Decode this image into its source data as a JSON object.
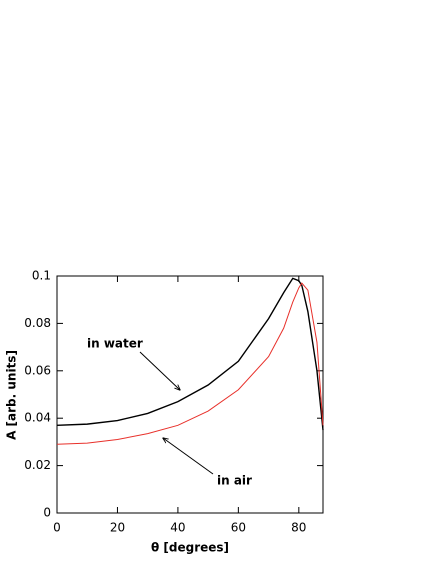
{
  "chart_data": {
    "type": "line",
    "x_label": "θ [degrees]",
    "y_label": "A [arb. units]",
    "x": [
      0,
      10,
      20,
      30,
      40,
      50,
      60,
      70,
      75,
      78,
      80,
      81,
      83,
      86,
      88
    ],
    "series": [
      {
        "name": "in water",
        "color": "#000000",
        "values": [
          0.037,
          0.0375,
          0.039,
          0.042,
          0.047,
          0.054,
          0.064,
          0.082,
          0.093,
          0.099,
          0.098,
          0.096,
          0.085,
          0.06,
          0.035
        ]
      },
      {
        "name": "in air",
        "color": "#e8302a",
        "values": [
          0.029,
          0.0295,
          0.031,
          0.0335,
          0.037,
          0.043,
          0.052,
          0.066,
          0.078,
          0.089,
          0.095,
          0.097,
          0.094,
          0.072,
          0.037
        ]
      }
    ],
    "xlim": [
      0,
      88
    ],
    "xticks": [
      0,
      20,
      40,
      60,
      80
    ],
    "ylim": [
      0,
      0.1
    ],
    "yticks": [
      0,
      0.02,
      0.04,
      0.06,
      0.08,
      0.1
    ],
    "grid": false
  }
}
